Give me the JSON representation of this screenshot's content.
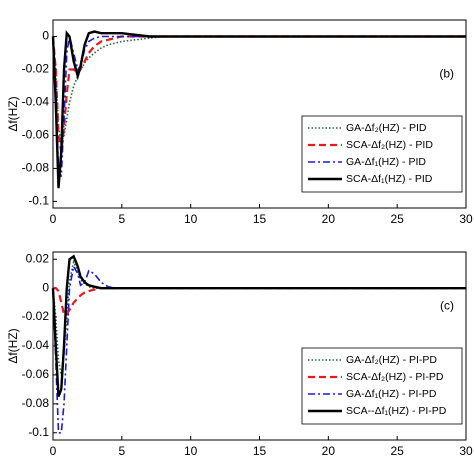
{
  "chart_data": [
    {
      "type": "line",
      "panel_label": "(b)",
      "ylabel": "Δf(HZ)",
      "x": [
        0,
        0.2,
        0.4,
        0.6,
        0.8,
        1,
        1.2,
        1.5,
        1.8,
        2,
        2.3,
        2.6,
        3,
        3.5,
        4,
        4.5,
        5,
        6,
        7,
        8,
        10,
        12,
        15,
        20,
        30
      ],
      "xlim": [
        0,
        30
      ],
      "ylim": [
        -0.104,
        0.01
      ],
      "xticks": [
        0,
        5,
        10,
        15,
        20,
        25,
        30
      ],
      "yticks": [
        0,
        -0.02,
        -0.04,
        -0.06,
        -0.08,
        -0.1
      ],
      "legend": "lower right",
      "series": [
        {
          "name": "GA-Δf₂(HZ) - PID",
          "color": "#1e6b3c",
          "dash": "dotted",
          "values": [
            0,
            -0.02,
            -0.055,
            -0.065,
            -0.06,
            -0.05,
            -0.04,
            -0.03,
            -0.024,
            -0.02,
            -0.016,
            -0.013,
            -0.01,
            -0.007,
            -0.005,
            -0.004,
            -0.003,
            -0.002,
            -0.001,
            0,
            0,
            0,
            0,
            0,
            0
          ]
        },
        {
          "name": "SCA-Δf₂(HZ) - PID",
          "color": "#e41a1c",
          "dash": "dashed",
          "values": [
            0,
            -0.02,
            -0.06,
            -0.07,
            -0.055,
            -0.035,
            -0.02,
            -0.02,
            -0.022,
            -0.02,
            -0.015,
            -0.01,
            -0.006,
            -0.003,
            -0.002,
            -0.001,
            0,
            0,
            0,
            0,
            0,
            0,
            0,
            0,
            0
          ]
        },
        {
          "name": "GA-Δf₁(HZ) - PID",
          "color": "#1a1adc",
          "dash": "dashdot",
          "values": [
            0,
            -0.03,
            -0.08,
            -0.085,
            -0.05,
            -0.01,
            0,
            -0.01,
            -0.02,
            -0.018,
            -0.008,
            -0.003,
            -0.001,
            0,
            0,
            0,
            0,
            0,
            0,
            0,
            0,
            0,
            0,
            0,
            0
          ]
        },
        {
          "name": "SCA-Δf₁(HZ) - PID",
          "color": "#000000",
          "dash": "solid",
          "values": [
            0,
            -0.04,
            -0.092,
            -0.07,
            -0.02,
            0.002,
            0,
            -0.015,
            -0.024,
            -0.018,
            -0.005,
            0.002,
            0.003,
            0.002,
            0.002,
            0.002,
            0.002,
            0.001,
            0,
            0,
            0,
            0,
            0,
            0,
            0
          ]
        }
      ]
    },
    {
      "type": "line",
      "panel_label": "(c)",
      "ylabel": "Δf(HZ)",
      "x": [
        0,
        0.2,
        0.4,
        0.6,
        0.8,
        1,
        1.2,
        1.5,
        1.8,
        2,
        2.3,
        2.6,
        3,
        3.5,
        4,
        4.5,
        5,
        6,
        7,
        8,
        10,
        12,
        15,
        20,
        30
      ],
      "xlim": [
        0,
        30
      ],
      "ylim": [
        -0.105,
        0.025
      ],
      "xticks": [
        0,
        5,
        10,
        15,
        20,
        25,
        30
      ],
      "yticks": [
        0.02,
        0,
        -0.02,
        -0.04,
        -0.06,
        -0.08,
        -0.1
      ],
      "legend": "lower right",
      "series": [
        {
          "name": "GA-Δf₂(HZ) - PI-PD",
          "color": "#1e6b3c",
          "dash": "dotted",
          "values": [
            0,
            -0.02,
            -0.05,
            -0.06,
            -0.045,
            -0.02,
            0.005,
            0.018,
            0.012,
            0.006,
            0.003,
            0.001,
            0,
            0,
            0,
            0,
            0,
            0,
            0,
            0,
            0,
            0,
            0,
            0,
            0
          ]
        },
        {
          "name": "SCA-Δf₂(HZ) - PI-PD",
          "color": "#e41a1c",
          "dash": "dashed",
          "values": [
            0,
            0,
            -0.002,
            -0.01,
            -0.018,
            -0.018,
            -0.015,
            -0.01,
            -0.007,
            -0.005,
            -0.003,
            -0.002,
            -0.001,
            0,
            0,
            0,
            0,
            0,
            0,
            0,
            0,
            0,
            0,
            0,
            0
          ]
        },
        {
          "name": "GA-Δf₁(HZ) - PI-PD",
          "color": "#1a1adc",
          "dash": "dashdot",
          "values": [
            0,
            -0.05,
            -0.1,
            -0.1,
            -0.08,
            -0.04,
            0,
            0.015,
            0.01,
            0.002,
            0.004,
            0.012,
            0.01,
            0.004,
            0.001,
            0,
            0,
            0,
            0,
            0,
            0,
            0,
            0,
            0,
            0
          ]
        },
        {
          "name": "SCA--Δf₁(HZ) - PI-PD",
          "color": "#000000",
          "dash": "solid",
          "values": [
            0,
            -0.04,
            -0.075,
            -0.07,
            -0.04,
            0,
            0.02,
            0.022,
            0.015,
            0.008,
            0.004,
            0.002,
            0.001,
            0,
            0,
            0,
            0,
            0,
            0,
            0,
            0,
            0,
            0,
            0,
            0
          ]
        }
      ]
    }
  ]
}
